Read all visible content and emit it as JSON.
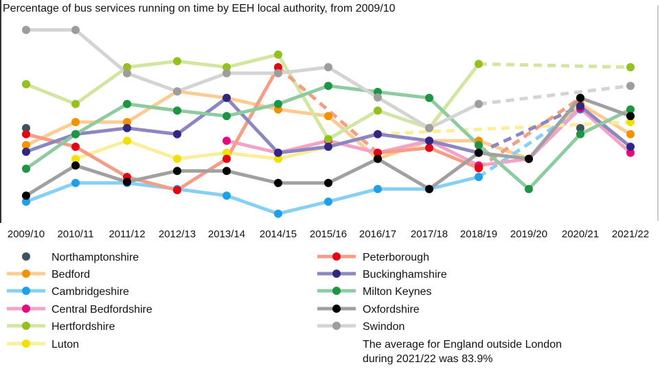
{
  "chart_data": {
    "type": "line",
    "title": "Percentage of bus services running on time by EEH local authority, from 2009/10",
    "xlabel": "",
    "ylabel": "",
    "categories": [
      "2009/10",
      "2010/11",
      "2011/12",
      "2012/13",
      "2013/14",
      "2014/15",
      "2015/16",
      "2016/17",
      "2017/18",
      "2018/19",
      "2019/20",
      "2020/21",
      "2021/22"
    ],
    "ylim": [
      60,
      100
    ],
    "grid": false,
    "y_axis_shown": false,
    "legend_placement": "bottom",
    "gaps_drawn_dashed": true,
    "series": [
      {
        "name": "Northamptonshire",
        "color": "#3d5361",
        "line_color": null,
        "values": [
          77.9,
          null,
          null,
          null,
          null,
          null,
          null,
          null,
          null,
          null,
          null,
          77.9,
          null
        ]
      },
      {
        "name": "Bedford",
        "color": "#f39200",
        "line_color": "#fdcc92",
        "values": [
          74.8,
          79.0,
          79.0,
          84.6,
          83.4,
          81.3,
          80.1,
          72.3,
          75.6,
          75.6,
          72.3,
          82.3,
          76.8
        ]
      },
      {
        "name": "Cambridgeshire",
        "color": "#1ea0e6",
        "line_color": "#86d0f5",
        "values": [
          64.5,
          67.9,
          67.9,
          66.8,
          65.6,
          62.3,
          64.5,
          66.8,
          66.8,
          69.0,
          null,
          81.3,
          null
        ]
      },
      {
        "name": "Central Bedfordshire",
        "color": "#e5097f",
        "line_color": "#f4a3c8",
        "values": [
          null,
          null,
          null,
          null,
          75.6,
          73.4,
          75.6,
          73.4,
          75.6,
          71.1,
          72.3,
          81.5,
          73.4
        ]
      },
      {
        "name": "Hertfordshire",
        "color": "#95c11f",
        "line_color": "#d2e6a0",
        "values": [
          85.9,
          82.3,
          89.0,
          90.1,
          89.0,
          91.3,
          75.9,
          81.1,
          77.9,
          89.6,
          null,
          null,
          89.0
        ]
      },
      {
        "name": "Luton",
        "color": "#f2e000",
        "line_color": "#f9ee9a",
        "values": [
          null,
          72.3,
          75.6,
          72.3,
          73.4,
          72.3,
          74.5,
          76.8,
          null,
          null,
          null,
          null,
          79.0
        ]
      },
      {
        "name": "Peterborough",
        "color": "#e30613",
        "line_color": "#f59e85",
        "values": [
          76.8,
          74.5,
          69.0,
          66.6,
          72.3,
          89.0,
          null,
          73.4,
          74.3,
          70.6,
          null,
          83.4,
          null
        ]
      },
      {
        "name": "Buckinghamshire",
        "color": "#312783",
        "line_color": "#8c86c2",
        "values": [
          73.6,
          76.8,
          77.9,
          76.8,
          83.4,
          73.4,
          74.5,
          76.8,
          75.6,
          73.4,
          null,
          81.9,
          74.5
        ]
      },
      {
        "name": "Milton Keynes",
        "color": "#1d9544",
        "line_color": "#8ecba0",
        "values": [
          70.5,
          76.8,
          82.3,
          81.1,
          80.1,
          82.3,
          85.6,
          84.5,
          83.4,
          74.8,
          66.8,
          76.8,
          81.3
        ]
      },
      {
        "name": "Oxfordshire",
        "color": "#000000",
        "line_color": "#a0a0a0",
        "values": [
          65.6,
          71.1,
          68.1,
          70.1,
          70.1,
          67.9,
          67.9,
          72.3,
          66.8,
          73.4,
          72.3,
          83.4,
          80.1
        ]
      },
      {
        "name": "Swindon",
        "color": "#9d9d9c",
        "line_color": "#d4d4d4",
        "values": [
          95.8,
          95.8,
          87.9,
          84.6,
          87.9,
          87.9,
          89.0,
          83.5,
          77.9,
          82.3,
          null,
          null,
          85.6
        ]
      }
    ],
    "annotation": [
      "The average for England outside London",
      "during 2021/22 was 83.9%"
    ]
  }
}
